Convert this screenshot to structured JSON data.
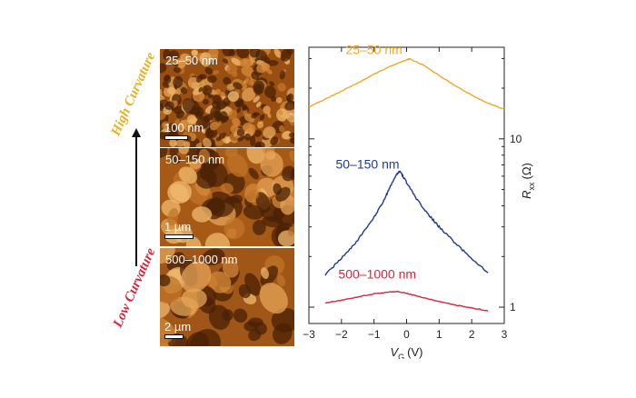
{
  "curvature": {
    "high_label": "High Curvature",
    "low_label": "Low Curvature",
    "high_color": "#e8b020",
    "low_color": "#d8243c"
  },
  "micrographs": [
    {
      "label": "25–50 nm",
      "scale_bar": "100 nm",
      "scale_fraction": 0.16
    },
    {
      "label": "50–150 nm",
      "scale_bar": "1 µm",
      "scale_fraction": 0.2
    },
    {
      "label": "500–1000 nm",
      "scale_bar": "2 µm",
      "scale_fraction": 0.13
    }
  ],
  "chart_data": {
    "type": "line",
    "xlabel_main": "V",
    "xlabel_sub": "G",
    "xlabel_unit": "(V)",
    "ylabel_main": "R",
    "ylabel_sub": "xx",
    "ylabel_unit": "(Ω)",
    "xlim": [
      -3,
      3
    ],
    "ylim": [
      0.8,
      35
    ],
    "yscale": "log",
    "xticks": [
      -3,
      -2,
      -1,
      0,
      1,
      2,
      3
    ],
    "yticks": [
      1,
      10
    ],
    "y_axis_side": "right",
    "series": [
      {
        "name": "25–50 nm",
        "color": "#f0a828",
        "x": [
          -3.0,
          -2.5,
          -2.0,
          -1.5,
          -1.0,
          -0.5,
          0.0,
          0.1,
          0.5,
          1.0,
          1.5,
          2.0,
          2.5,
          3.0
        ],
        "y": [
          15.5,
          17.2,
          19.2,
          21.5,
          24.2,
          27.0,
          29.5,
          29.8,
          27.5,
          23.8,
          20.6,
          18.2,
          16.3,
          15.0
        ]
      },
      {
        "name": "50–150 nm",
        "color": "#1f3c90",
        "x": [
          -2.5,
          -2.0,
          -1.5,
          -1.0,
          -0.7,
          -0.5,
          -0.3,
          -0.2,
          0.0,
          0.3,
          0.7,
          1.0,
          1.5,
          2.0,
          2.5
        ],
        "y": [
          1.55,
          1.95,
          2.5,
          3.4,
          4.3,
          5.2,
          6.2,
          6.4,
          5.5,
          4.4,
          3.5,
          3.0,
          2.4,
          1.95,
          1.6
        ]
      },
      {
        "name": "500–1000 nm",
        "color": "#d8243c",
        "x": [
          -2.5,
          -2.0,
          -1.5,
          -1.0,
          -0.5,
          -0.3,
          0.0,
          0.5,
          1.0,
          1.5,
          2.0,
          2.5
        ],
        "y": [
          1.06,
          1.1,
          1.15,
          1.2,
          1.23,
          1.24,
          1.21,
          1.14,
          1.08,
          1.03,
          0.99,
          0.95
        ]
      }
    ]
  }
}
